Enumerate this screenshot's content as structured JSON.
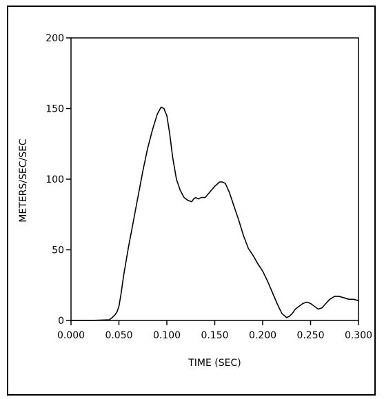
{
  "chart_data": {
    "type": "line",
    "xlabel": "TIME (SEC)",
    "ylabel": "METERS/SEC/SEC",
    "xlim": [
      0,
      0.3
    ],
    "ylim": [
      0,
      200
    ],
    "x_ticks": [
      "0.000",
      "0.050",
      "0.100",
      "0.150",
      "0.200",
      "0.250",
      "0.300"
    ],
    "y_ticks": [
      "0",
      "50",
      "100",
      "150",
      "200"
    ],
    "grid": false,
    "series": [
      {
        "x": [
          0.0,
          0.02,
          0.04,
          0.043,
          0.046,
          0.048,
          0.05,
          0.052,
          0.055,
          0.06,
          0.065,
          0.07,
          0.075,
          0.08,
          0.085,
          0.09,
          0.094,
          0.097,
          0.1,
          0.103,
          0.106,
          0.11,
          0.114,
          0.118,
          0.122,
          0.126,
          0.128,
          0.13,
          0.133,
          0.136,
          0.14,
          0.145,
          0.15,
          0.155,
          0.158,
          0.161,
          0.165,
          0.17,
          0.175,
          0.18,
          0.185,
          0.19,
          0.195,
          0.2,
          0.205,
          0.21,
          0.215,
          0.22,
          0.225,
          0.228,
          0.231,
          0.234,
          0.238,
          0.242,
          0.246,
          0.25,
          0.254,
          0.258,
          0.262,
          0.266,
          0.27,
          0.275,
          0.28,
          0.285,
          0.29,
          0.295,
          0.3
        ],
        "y": [
          0,
          0,
          0.5,
          2,
          4,
          6,
          10,
          18,
          32,
          52,
          70,
          88,
          106,
          122,
          135,
          146,
          151,
          150,
          145,
          132,
          116,
          100,
          92,
          87,
          85,
          84,
          86,
          87,
          86,
          87,
          87,
          91,
          95,
          98,
          98,
          97,
          91,
          81,
          71,
          60,
          51,
          46,
          40,
          35,
          28,
          20,
          12,
          5,
          2,
          3,
          5,
          8,
          10,
          12,
          13,
          12,
          10,
          8,
          9,
          12,
          15,
          17,
          17,
          16,
          15,
          15,
          14
        ]
      }
    ]
  }
}
